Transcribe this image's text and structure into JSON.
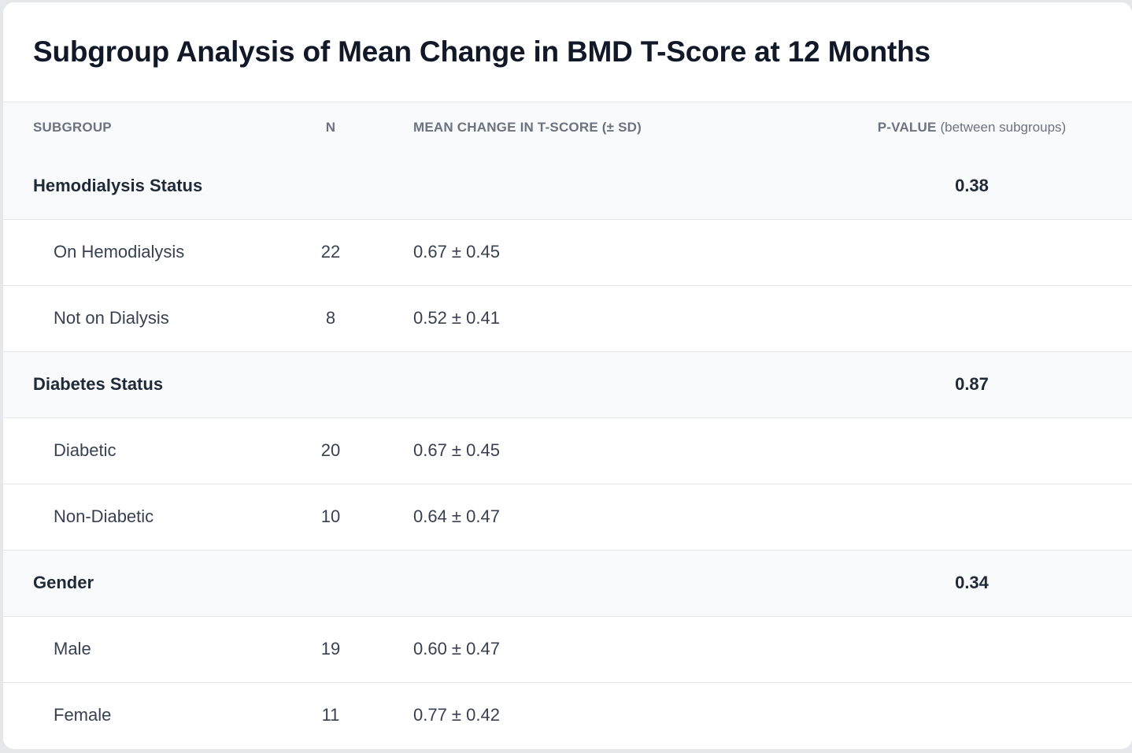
{
  "title": "Subgroup Analysis of Mean Change in BMD T-Score at 12 Months",
  "columns": {
    "subgroup": "Subgroup",
    "n": "N",
    "mean": "Mean Change in T-Score (± SD)",
    "pvalue": "P-Value",
    "pvalue_note": "(between subgroups)"
  },
  "groups": [
    {
      "label": "Hemodialysis Status",
      "p_value": "0.38",
      "items": [
        {
          "label": "On Hemodialysis",
          "n": "22",
          "mean": "0.67 ± 0.45"
        },
        {
          "label": "Not on Dialysis",
          "n": "8",
          "mean": "0.52 ± 0.41"
        }
      ]
    },
    {
      "label": "Diabetes Status",
      "p_value": "0.87",
      "items": [
        {
          "label": "Diabetic",
          "n": "20",
          "mean": "0.67 ± 0.45"
        },
        {
          "label": "Non-Diabetic",
          "n": "10",
          "mean": "0.64 ± 0.47"
        }
      ]
    },
    {
      "label": "Gender",
      "p_value": "0.34",
      "items": [
        {
          "label": "Male",
          "n": "19",
          "mean": "0.60 ± 0.47"
        },
        {
          "label": "Female",
          "n": "11",
          "mean": "0.77 ± 0.42"
        }
      ]
    }
  ]
}
